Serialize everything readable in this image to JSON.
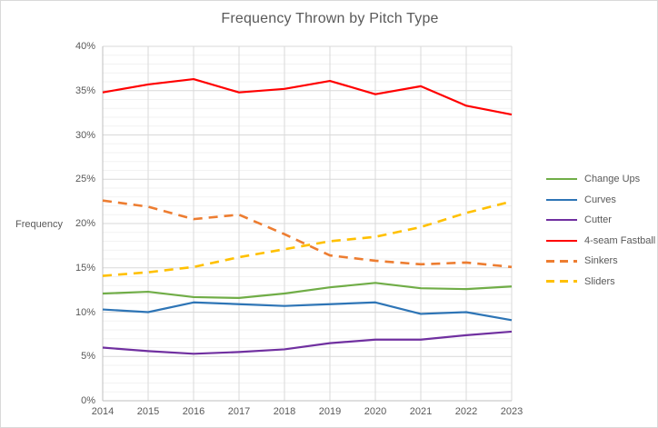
{
  "title": "Frequency Thrown by Pitch Type",
  "y_axis_label": "Frequency",
  "colors": {
    "text": "#595959",
    "background": "#FFFFFF",
    "chart_border": "#D9D9D9",
    "major_gridline": "#D9D9D9",
    "minor_gridline": "#F2F2F2",
    "axis_line": "#BFBFBF"
  },
  "chart_data": {
    "type": "line",
    "title": "Frequency Thrown by Pitch Type",
    "xlabel": "",
    "ylabel": "Frequency",
    "ylim": [
      0,
      40
    ],
    "y_major_step": 5,
    "y_minor_step": 1,
    "grid": true,
    "legend_position": "right",
    "x": [
      2014,
      2015,
      2016,
      2017,
      2018,
      2019,
      2020,
      2021,
      2022,
      2023
    ],
    "x_tick_labels": [
      "2014",
      "2015",
      "2016",
      "2017",
      "2018",
      "2019",
      "2020",
      "2021",
      "2022",
      "2023"
    ],
    "y_tick_labels": [
      "0%",
      "5%",
      "10%",
      "15%",
      "20%",
      "25%",
      "30%",
      "35%",
      "40%"
    ],
    "series": [
      {
        "name": "Change Ups",
        "color": "#70AD47",
        "style": "solid",
        "values": [
          12.1,
          12.3,
          11.7,
          11.6,
          12.1,
          12.8,
          13.3,
          12.7,
          12.6,
          12.9
        ]
      },
      {
        "name": "Curves",
        "color": "#2E75B6",
        "style": "solid",
        "values": [
          10.3,
          10.0,
          11.1,
          10.9,
          10.7,
          10.9,
          11.1,
          9.8,
          10.0,
          9.1
        ]
      },
      {
        "name": "Cutter",
        "color": "#7030A0",
        "style": "solid",
        "values": [
          6.0,
          5.6,
          5.3,
          5.5,
          5.8,
          6.5,
          6.9,
          6.9,
          7.4,
          7.8
        ]
      },
      {
        "name": "4-seam Fastball",
        "color": "#FF0000",
        "style": "solid",
        "values": [
          34.8,
          35.7,
          36.3,
          34.8,
          35.2,
          36.1,
          34.6,
          35.5,
          33.3,
          32.3
        ]
      },
      {
        "name": "Sinkers",
        "color": "#ED7D31",
        "style": "dashed",
        "values": [
          22.6,
          21.9,
          20.5,
          21.0,
          18.8,
          16.4,
          15.8,
          15.4,
          15.6,
          15.1
        ]
      },
      {
        "name": "Sliders",
        "color": "#FFC000",
        "style": "dashed",
        "values": [
          14.1,
          14.5,
          15.1,
          16.2,
          17.1,
          18.0,
          18.5,
          19.6,
          21.2,
          22.5
        ]
      }
    ]
  }
}
